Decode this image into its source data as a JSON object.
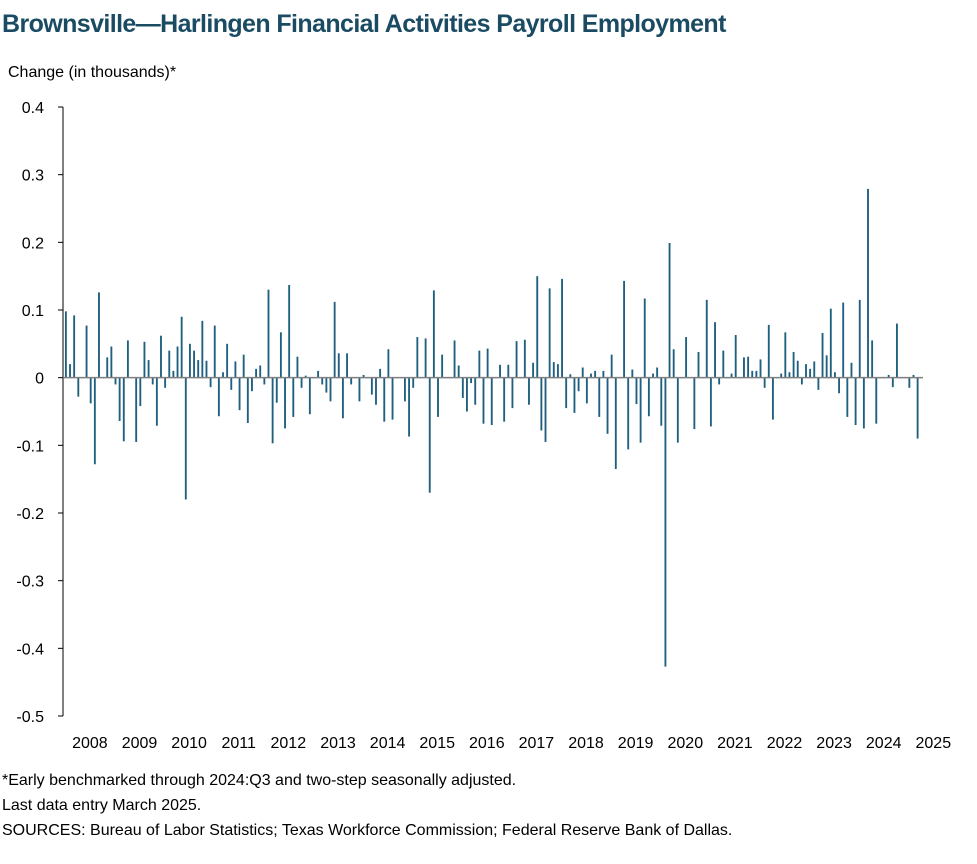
{
  "title": "Brownsville—Harlingen Financial Activities Payroll Employment",
  "chart_data": {
    "type": "bar",
    "title": "Brownsville—Harlingen Financial Activities Payroll Employment",
    "ylabel": "Change (in thousands)*",
    "xlabel": "",
    "ylim": [
      -0.5,
      0.4
    ],
    "yticks": [
      "0.4",
      "0.3",
      "0.2",
      "0.1",
      "0",
      "-0.1",
      "-0.2",
      "-0.3",
      "-0.4",
      "-0.5"
    ],
    "ytick_values": [
      0.4,
      0.3,
      0.2,
      0.1,
      0,
      -0.1,
      -0.2,
      -0.3,
      -0.4,
      -0.5
    ],
    "xticks": [
      "2008",
      "2009",
      "2010",
      "2011",
      "2012",
      "2013",
      "2014",
      "2015",
      "2016",
      "2017",
      "2018",
      "2019",
      "2020",
      "2021",
      "2022",
      "2023",
      "2024",
      "2025"
    ],
    "start": "2008-01",
    "end": "2025-03",
    "frequency": "monthly",
    "bar_color": "#1f5f7f",
    "grid": false,
    "values": [
      0.098,
      0.02,
      0.092,
      -0.028,
      0.0,
      0.077,
      -0.038,
      -0.128,
      0.126,
      0.0,
      0.03,
      0.046,
      -0.01,
      -0.064,
      -0.094,
      0.055,
      0.0,
      -0.095,
      -0.042,
      0.053,
      0.026,
      -0.01,
      -0.071,
      0.062,
      -0.015,
      0.04,
      0.01,
      0.046,
      0.09,
      -0.18,
      0.05,
      0.04,
      0.026,
      0.084,
      0.025,
      -0.014,
      0.077,
      -0.057,
      0.008,
      0.05,
      -0.018,
      0.024,
      -0.048,
      0.034,
      -0.067,
      -0.02,
      0.013,
      0.018,
      -0.01,
      0.13,
      -0.097,
      -0.037,
      0.067,
      -0.075,
      0.137,
      -0.058,
      0.031,
      -0.015,
      0.003,
      -0.054,
      0.0,
      0.01,
      -0.01,
      -0.022,
      -0.035,
      0.112,
      0.036,
      -0.06,
      0.036,
      -0.01,
      0.0,
      -0.035,
      0.004,
      0.0,
      -0.025,
      -0.04,
      0.013,
      -0.065,
      0.042,
      -0.062,
      0.0,
      0.0,
      -0.035,
      -0.087,
      -0.015,
      0.06,
      0.0,
      0.058,
      -0.17,
      0.129,
      -0.058,
      0.034,
      0.0,
      0.0,
      0.055,
      0.018,
      -0.03,
      -0.05,
      -0.008,
      -0.04,
      0.04,
      -0.068,
      0.043,
      -0.07,
      0.0,
      0.019,
      -0.065,
      0.019,
      -0.045,
      0.054,
      0.0,
      0.056,
      -0.04,
      0.022,
      0.15,
      -0.078,
      -0.095,
      0.132,
      0.023,
      0.02,
      0.146,
      -0.045,
      0.005,
      -0.052,
      -0.02,
      0.015,
      -0.038,
      0.006,
      0.01,
      -0.058,
      0.01,
      -0.083,
      0.034,
      -0.135,
      0.0,
      0.143,
      -0.106,
      0.012,
      -0.039,
      -0.096,
      0.117,
      -0.057,
      0.006,
      0.015,
      -0.071,
      -0.427,
      0.199,
      0.042,
      -0.096,
      0.0,
      0.06,
      0.0,
      -0.076,
      0.038,
      0.0,
      0.115,
      -0.072,
      0.082,
      -0.01,
      0.04,
      0.0,
      0.006,
      0.063,
      0.0,
      0.03,
      0.031,
      0.01,
      0.01,
      0.027,
      -0.015,
      0.078,
      -0.062,
      0.0,
      0.006,
      0.067,
      0.008,
      0.038,
      0.025,
      -0.01,
      0.02,
      0.013,
      0.024,
      -0.018,
      0.066,
      0.033,
      0.102,
      0.008,
      -0.023,
      0.111,
      -0.058,
      0.022,
      -0.07,
      0.115,
      -0.075,
      0.279,
      0.055,
      -0.068,
      0.0,
      0.0,
      0.004,
      -0.014,
      0.08,
      0.0,
      0.0,
      -0.015,
      0.004,
      -0.09
    ]
  },
  "footnotes": {
    "note1": "*Early benchmarked through 2024:Q3 and two-step seasonally adjusted.",
    "note2": "Last data entry March 2025.",
    "sources": "SOURCES:  Bureau of Labor Statistics; Texas Workforce Commission;  Federal Reserve Bank of Dallas."
  }
}
